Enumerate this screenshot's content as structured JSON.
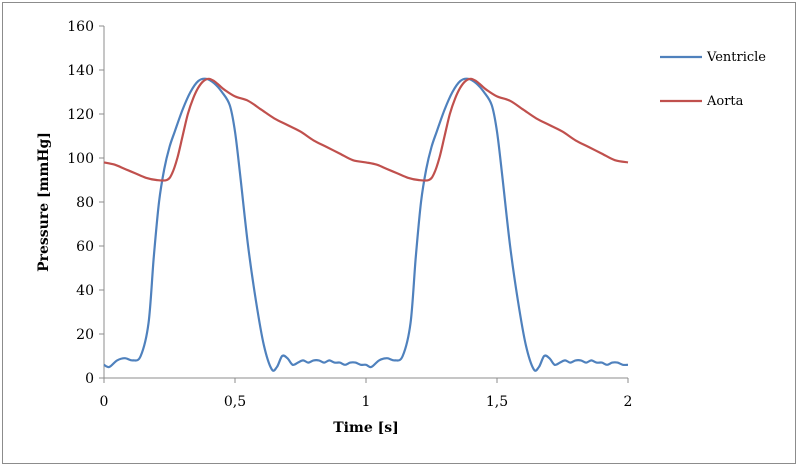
{
  "chart_data": {
    "type": "line",
    "xlabel": "Time [s]",
    "ylabel": "Pressure [mmHg]",
    "xlim": [
      0,
      2
    ],
    "ylim": [
      0,
      160
    ],
    "x_ticks": [
      0,
      0.5,
      1,
      1.5,
      2
    ],
    "x_tick_labels": [
      "0",
      "0,5",
      "1",
      "1,5",
      "2"
    ],
    "y_ticks": [
      0,
      20,
      40,
      60,
      80,
      100,
      120,
      140,
      160
    ],
    "y_tick_labels": [
      "0",
      "20",
      "40",
      "60",
      "80",
      "100",
      "120",
      "140",
      "160"
    ],
    "grid": false,
    "legend_position": "right",
    "series": [
      {
        "name": "Ventricle",
        "color": "#4F81BD",
        "x": [
          0,
          0.02,
          0.05,
          0.08,
          0.11,
          0.14,
          0.17,
          0.19,
          0.21,
          0.23,
          0.25,
          0.27,
          0.3,
          0.33,
          0.36,
          0.39,
          0.42,
          0.45,
          0.48,
          0.5,
          0.52,
          0.55,
          0.58,
          0.61,
          0.64,
          0.66,
          0.68,
          0.7,
          0.72,
          0.74,
          0.76,
          0.78,
          0.8,
          0.82,
          0.84,
          0.86,
          0.88,
          0.9,
          0.92,
          0.94,
          0.96,
          0.98,
          1,
          1.02,
          1.05,
          1.08,
          1.11,
          1.14,
          1.17,
          1.19,
          1.21,
          1.23,
          1.25,
          1.27,
          1.3,
          1.33,
          1.36,
          1.39,
          1.42,
          1.45,
          1.48,
          1.5,
          1.52,
          1.55,
          1.58,
          1.61,
          1.64,
          1.66,
          1.68,
          1.7,
          1.72,
          1.74,
          1.76,
          1.78,
          1.8,
          1.82,
          1.84,
          1.86,
          1.88,
          1.9,
          1.92,
          1.94,
          1.96,
          1.98,
          2
        ],
        "y": [
          6,
          5,
          8,
          9,
          8,
          10,
          25,
          55,
          80,
          95,
          105,
          112,
          122,
          130,
          135,
          136,
          134,
          130,
          124,
          112,
          92,
          60,
          35,
          15,
          4,
          5,
          10,
          9,
          6,
          7,
          8,
          7,
          8,
          8,
          7,
          8,
          7,
          7,
          6,
          7,
          7,
          6,
          6,
          5,
          8,
          9,
          8,
          10,
          25,
          55,
          80,
          95,
          105,
          112,
          122,
          130,
          135,
          136,
          134,
          130,
          124,
          112,
          92,
          60,
          35,
          15,
          4,
          5,
          10,
          9,
          6,
          7,
          8,
          7,
          8,
          8,
          7,
          8,
          7,
          7,
          6,
          7,
          7,
          6,
          6
        ]
      },
      {
        "name": "Aorta",
        "color": "#C0504D",
        "x": [
          0,
          0.04,
          0.08,
          0.12,
          0.16,
          0.2,
          0.24,
          0.26,
          0.28,
          0.3,
          0.32,
          0.34,
          0.36,
          0.38,
          0.4,
          0.42,
          0.44,
          0.46,
          0.5,
          0.55,
          0.6,
          0.65,
          0.7,
          0.75,
          0.8,
          0.85,
          0.9,
          0.95,
          1,
          1.04,
          1.08,
          1.12,
          1.16,
          1.2,
          1.24,
          1.26,
          1.28,
          1.3,
          1.32,
          1.34,
          1.36,
          1.38,
          1.4,
          1.42,
          1.44,
          1.46,
          1.5,
          1.55,
          1.6,
          1.65,
          1.7,
          1.75,
          1.8,
          1.85,
          1.9,
          1.95,
          2
        ],
        "y": [
          98,
          97,
          95,
          93,
          91,
          90,
          90,
          93,
          100,
          110,
          120,
          127,
          132,
          135,
          136,
          135,
          133,
          131,
          128,
          126,
          122,
          118,
          115,
          112,
          108,
          105,
          102,
          99,
          98,
          97,
          95,
          93,
          91,
          90,
          90,
          93,
          100,
          110,
          120,
          127,
          132,
          135,
          136,
          135,
          133,
          131,
          128,
          126,
          122,
          118,
          115,
          112,
          108,
          105,
          102,
          99,
          98
        ]
      }
    ]
  }
}
